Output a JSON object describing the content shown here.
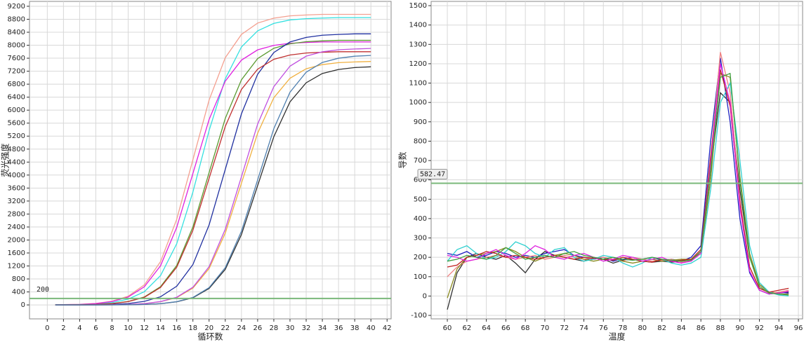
{
  "chart_data": [
    {
      "type": "line",
      "x_label": "循环数",
      "y_label": "荧光强度",
      "x": [
        1,
        2,
        4,
        6,
        8,
        10,
        12,
        14,
        16,
        18,
        20,
        22,
        24,
        26,
        28,
        30,
        32,
        34,
        36,
        38,
        40
      ],
      "series": [
        {
          "color": "#f4a090",
          "values": [
            5,
            9,
            18,
            45,
            116,
            269,
            618,
            1334,
            2640,
            4475,
            6310,
            7616,
            8332,
            8682,
            8834,
            8905,
            8932,
            8950,
            8950,
            8950,
            8950
          ]
        },
        {
          "color": "#33e0e0",
          "values": [
            4,
            5,
            13,
            31,
            71,
            177,
            407,
            903,
            1885,
            3478,
            5372,
            6965,
            7947,
            8443,
            8673,
            8779,
            8819,
            8837,
            8850,
            8850,
            8850
          ]
        },
        {
          "color": "#e020e0",
          "values": [
            5,
            8,
            16,
            41,
            105,
            243,
            559,
            1207,
            2390,
            4050,
            5711,
            6893,
            7541,
            7857,
            7995,
            8060,
            8084,
            8100,
            8100,
            8100,
            8100
          ]
        },
        {
          "color": "#5a9a30",
          "values": [
            3,
            3,
            8,
            16,
            41,
            106,
            245,
            562,
            1214,
            2404,
            4075,
            5746,
            6936,
            7588,
            7906,
            8044,
            8109,
            8134,
            8150,
            8150,
            8150
          ]
        },
        {
          "color": "#2030a0",
          "values": [
            2,
            2,
            3,
            8,
            17,
            42,
            109,
            251,
            576,
            1244,
            2463,
            4175,
            5887,
            7106,
            7774,
            8100,
            8241,
            8308,
            8333,
            8350,
            8350
          ]
        },
        {
          "color": "#c03030",
          "values": [
            3,
            3,
            8,
            16,
            39,
            101,
            234,
            538,
            1162,
            2301,
            3900,
            5499,
            6638,
            7262,
            7566,
            7699,
            7761,
            7784,
            7800,
            7800,
            7800
          ]
        },
        {
          "color": "#f0b040",
          "values": [
            0,
            0,
            1,
            2,
            3,
            15,
            38,
            98,
            225,
            518,
            1118,
            2213,
            3750,
            5288,
            6383,
            6983,
            7275,
            7403,
            7463,
            7485,
            7500
          ]
        },
        {
          "color": "#c050e0",
          "values": [
            0,
            0,
            1,
            2,
            8,
            16,
            40,
            103,
            237,
            545,
            1177,
            2331,
            3950,
            5570,
            6723,
            7355,
            7663,
            7797,
            7861,
            7884,
            7900
          ]
        },
        {
          "color": "#303030",
          "values": [
            0,
            0,
            0,
            1,
            2,
            5,
            15,
            37,
            96,
            221,
            507,
            1095,
            2168,
            3675,
            5182,
            6255,
            6843,
            7130,
            7254,
            7313,
            7335
          ]
        },
        {
          "color": "#5080b0",
          "values": [
            0,
            0,
            0,
            1,
            2,
            5,
            15,
            39,
            100,
            231,
            531,
            1147,
            2272,
            3850,
            5429,
            6553,
            7169,
            7469,
            7600,
            7662,
            7685
          ]
        }
      ],
      "xlim": [
        -2.2,
        42.5
      ],
      "ylim": [
        -430,
        9350
      ],
      "xticks": [
        0,
        2,
        4,
        6,
        8,
        10,
        12,
        14,
        16,
        18,
        20,
        22,
        24,
        26,
        28,
        30,
        32,
        34,
        36,
        38,
        40,
        42
      ],
      "yticks": [
        0,
        400,
        800,
        1200,
        1600,
        2000,
        2400,
        2800,
        3200,
        3600,
        4000,
        4400,
        4800,
        5200,
        5600,
        6000,
        6400,
        6800,
        7200,
        7600,
        8000,
        8400,
        8800,
        9200
      ],
      "grid": true,
      "threshold": 200,
      "threshold_color": "#7ab87a"
    },
    {
      "type": "line",
      "x_label": "温度",
      "y_label": "导数",
      "x": [
        60,
        61,
        62,
        63,
        64,
        65,
        66,
        67,
        68,
        69,
        70,
        71,
        72,
        73,
        74,
        75,
        76,
        77,
        78,
        79,
        80,
        81,
        82,
        83,
        84,
        85,
        86,
        87,
        88,
        89,
        90,
        91,
        92,
        93,
        94,
        95
      ],
      "series": [
        {
          "color": "#303030",
          "values": [
            -70,
            120,
            200,
            220,
            200,
            190,
            210,
            170,
            120,
            190,
            230,
            210,
            200,
            190,
            180,
            200,
            190,
            170,
            185,
            190,
            180,
            175,
            180,
            175,
            180,
            185,
            230,
            650,
            1050,
            1000,
            550,
            200,
            60,
            20,
            15,
            20
          ]
        },
        {
          "color": "#2020c0",
          "values": [
            220,
            210,
            230,
            200,
            210,
            230,
            220,
            200,
            210,
            200,
            220,
            230,
            240,
            210,
            200,
            190,
            200,
            180,
            190,
            200,
            190,
            200,
            185,
            190,
            180,
            200,
            260,
            800,
            1230,
            900,
            400,
            120,
            30,
            10,
            20,
            15
          ]
        },
        {
          "color": "#f08080",
          "values": [
            100,
            150,
            180,
            190,
            200,
            210,
            200,
            190,
            200,
            210,
            190,
            200,
            210,
            200,
            190,
            195,
            200,
            190,
            180,
            200,
            190,
            180,
            185,
            190,
            175,
            180,
            230,
            700,
            1260,
            1050,
            500,
            150,
            40,
            15,
            20,
            30
          ]
        },
        {
          "color": "#8a8a20",
          "values": [
            -10,
            140,
            200,
            210,
            220,
            230,
            250,
            230,
            200,
            180,
            200,
            210,
            220,
            210,
            190,
            180,
            190,
            200,
            180,
            170,
            180,
            190,
            180,
            185,
            190,
            190,
            220,
            600,
            1150,
            1130,
            620,
            220,
            60,
            20,
            10,
            10
          ]
        },
        {
          "color": "#30d0d0",
          "values": [
            180,
            240,
            260,
            220,
            190,
            200,
            230,
            280,
            260,
            220,
            200,
            240,
            250,
            200,
            180,
            190,
            210,
            200,
            170,
            150,
            170,
            200,
            190,
            170,
            160,
            170,
            200,
            550,
            1000,
            1100,
            700,
            260,
            70,
            20,
            5,
            0
          ]
        },
        {
          "color": "#c02020",
          "values": [
            150,
            160,
            200,
            210,
            230,
            220,
            200,
            210,
            200,
            190,
            200,
            210,
            200,
            190,
            200,
            195,
            190,
            185,
            200,
            190,
            180,
            175,
            190,
            180,
            185,
            190,
            240,
            720,
            1170,
            980,
            480,
            150,
            40,
            20,
            30,
            40
          ]
        },
        {
          "color": "#e020e0",
          "values": [
            210,
            200,
            180,
            190,
            220,
            240,
            210,
            190,
            220,
            260,
            240,
            200,
            190,
            210,
            220,
            200,
            180,
            190,
            210,
            200,
            180,
            190,
            200,
            180,
            170,
            180,
            220,
            680,
            1200,
            1000,
            460,
            130,
            30,
            10,
            15,
            25
          ]
        },
        {
          "color": "#40a040",
          "values": [
            180,
            190,
            210,
            200,
            190,
            210,
            250,
            220,
            190,
            200,
            210,
            200,
            220,
            230,
            210,
            200,
            190,
            200,
            190,
            185,
            190,
            200,
            190,
            185,
            180,
            185,
            230,
            650,
            1130,
            1150,
            600,
            200,
            50,
            15,
            10,
            5
          ]
        }
      ],
      "xlim": [
        58.34,
        96.43
      ],
      "ylim": [
        -118,
        1522
      ],
      "xticks": [
        60,
        62,
        64,
        66,
        68,
        70,
        72,
        74,
        76,
        78,
        80,
        82,
        84,
        86,
        88,
        90,
        92,
        94,
        96
      ],
      "yticks": [
        -100,
        0,
        100,
        200,
        300,
        400,
        500,
        600,
        700,
        800,
        900,
        1000,
        1100,
        1200,
        1300,
        1400,
        1500
      ],
      "grid": true,
      "threshold": 582.47,
      "threshold_color": "#7ab87a"
    }
  ]
}
